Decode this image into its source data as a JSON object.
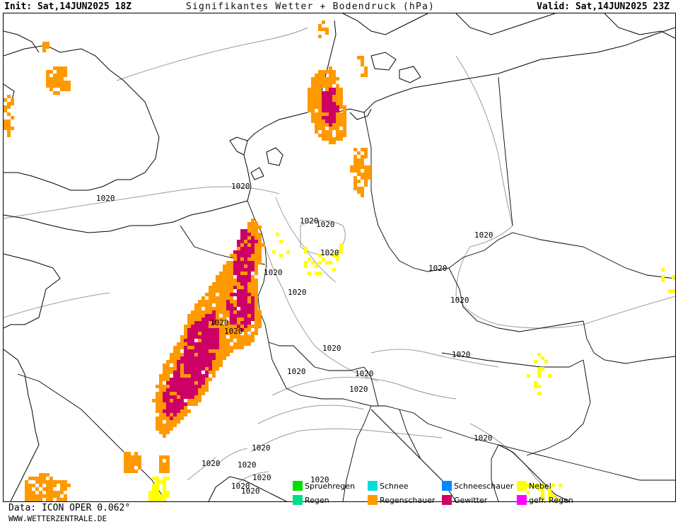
{
  "header": {
    "init": "Init: Sat,14JUN2025 18Z",
    "title": "Signifikantes Wetter + Bodendruck (hPa)",
    "valid": "Valid: Sat,14JUN2025 23Z"
  },
  "map": {
    "isobar_value": "1020",
    "isobar_labels": [
      "1020",
      "1020",
      "1020",
      "1020",
      "1020",
      "1020",
      "1020",
      "1020",
      "1020",
      "1020",
      "1020",
      "1020",
      "1020",
      "1020",
      "1020",
      "1020",
      "1020",
      "1020",
      "1020",
      "1020",
      "1020",
      "1020",
      "1020",
      "1020",
      "1020",
      "1020"
    ],
    "colors": {
      "coast": "#000000",
      "border": "#000000",
      "isobar": "#9a9a9a",
      "regenschauer": "#ff9900",
      "gewitter": "#cc0066",
      "nebel": "#ffff00"
    }
  },
  "legend": {
    "items": [
      {
        "label": "Spruehregen",
        "color": "#00dd00"
      },
      {
        "label": "Schnee",
        "color": "#00dddd"
      },
      {
        "label": "Schneeschauer",
        "color": "#0088ff"
      },
      {
        "label": "Nebel",
        "color": "#ffff00"
      },
      {
        "label": "Regen",
        "color": "#00dd88"
      },
      {
        "label": "Regenschauer",
        "color": "#ff9900"
      },
      {
        "label": "Gewitter",
        "color": "#cc0066"
      },
      {
        "label": "gefr. Regen",
        "color": "#ff00ff"
      }
    ]
  },
  "footer": {
    "data": "Data: ICON OPER 0.062°",
    "site": "WWW.WETTERZENTRALE.DE"
  }
}
